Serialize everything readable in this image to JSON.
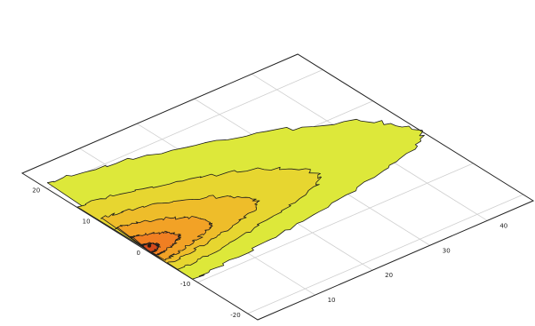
{
  "chart_data": {
    "type": "contour",
    "title": "",
    "xlabel": "",
    "ylabel": "",
    "x_ticks": [
      "10",
      "20",
      "30",
      "40"
    ],
    "y_ticks": [
      "-20",
      "-10",
      "0",
      "10",
      "20"
    ],
    "xlim": [
      0,
      48
    ],
    "ylim": [
      -22,
      25
    ],
    "grid": true,
    "source": {
      "x": 0.5,
      "y": 0.5
    },
    "contours": [
      {
        "level": 1,
        "color": "#dde83a",
        "x_extent": [
          0,
          35
        ],
        "y_extent": [
          -9,
          21
        ]
      },
      {
        "level": 2,
        "color": "#e7d630",
        "x_extent": [
          0,
          22
        ],
        "y_extent": [
          -6,
          14
        ]
      },
      {
        "level": 3,
        "color": "#eebd2a",
        "x_extent": [
          0,
          14
        ],
        "y_extent": [
          -4,
          10
        ]
      },
      {
        "level": 4,
        "color": "#f2a226",
        "x_extent": [
          0,
          8
        ],
        "y_extent": [
          -3,
          7
        ]
      },
      {
        "level": 5,
        "color": "#f07f22",
        "x_extent": [
          0,
          4
        ],
        "y_extent": [
          -1.5,
          4
        ]
      },
      {
        "level": 6,
        "color": "#d44a1c",
        "x_extent": [
          0,
          1.2
        ],
        "y_extent": [
          -0.6,
          1.6
        ]
      }
    ]
  }
}
